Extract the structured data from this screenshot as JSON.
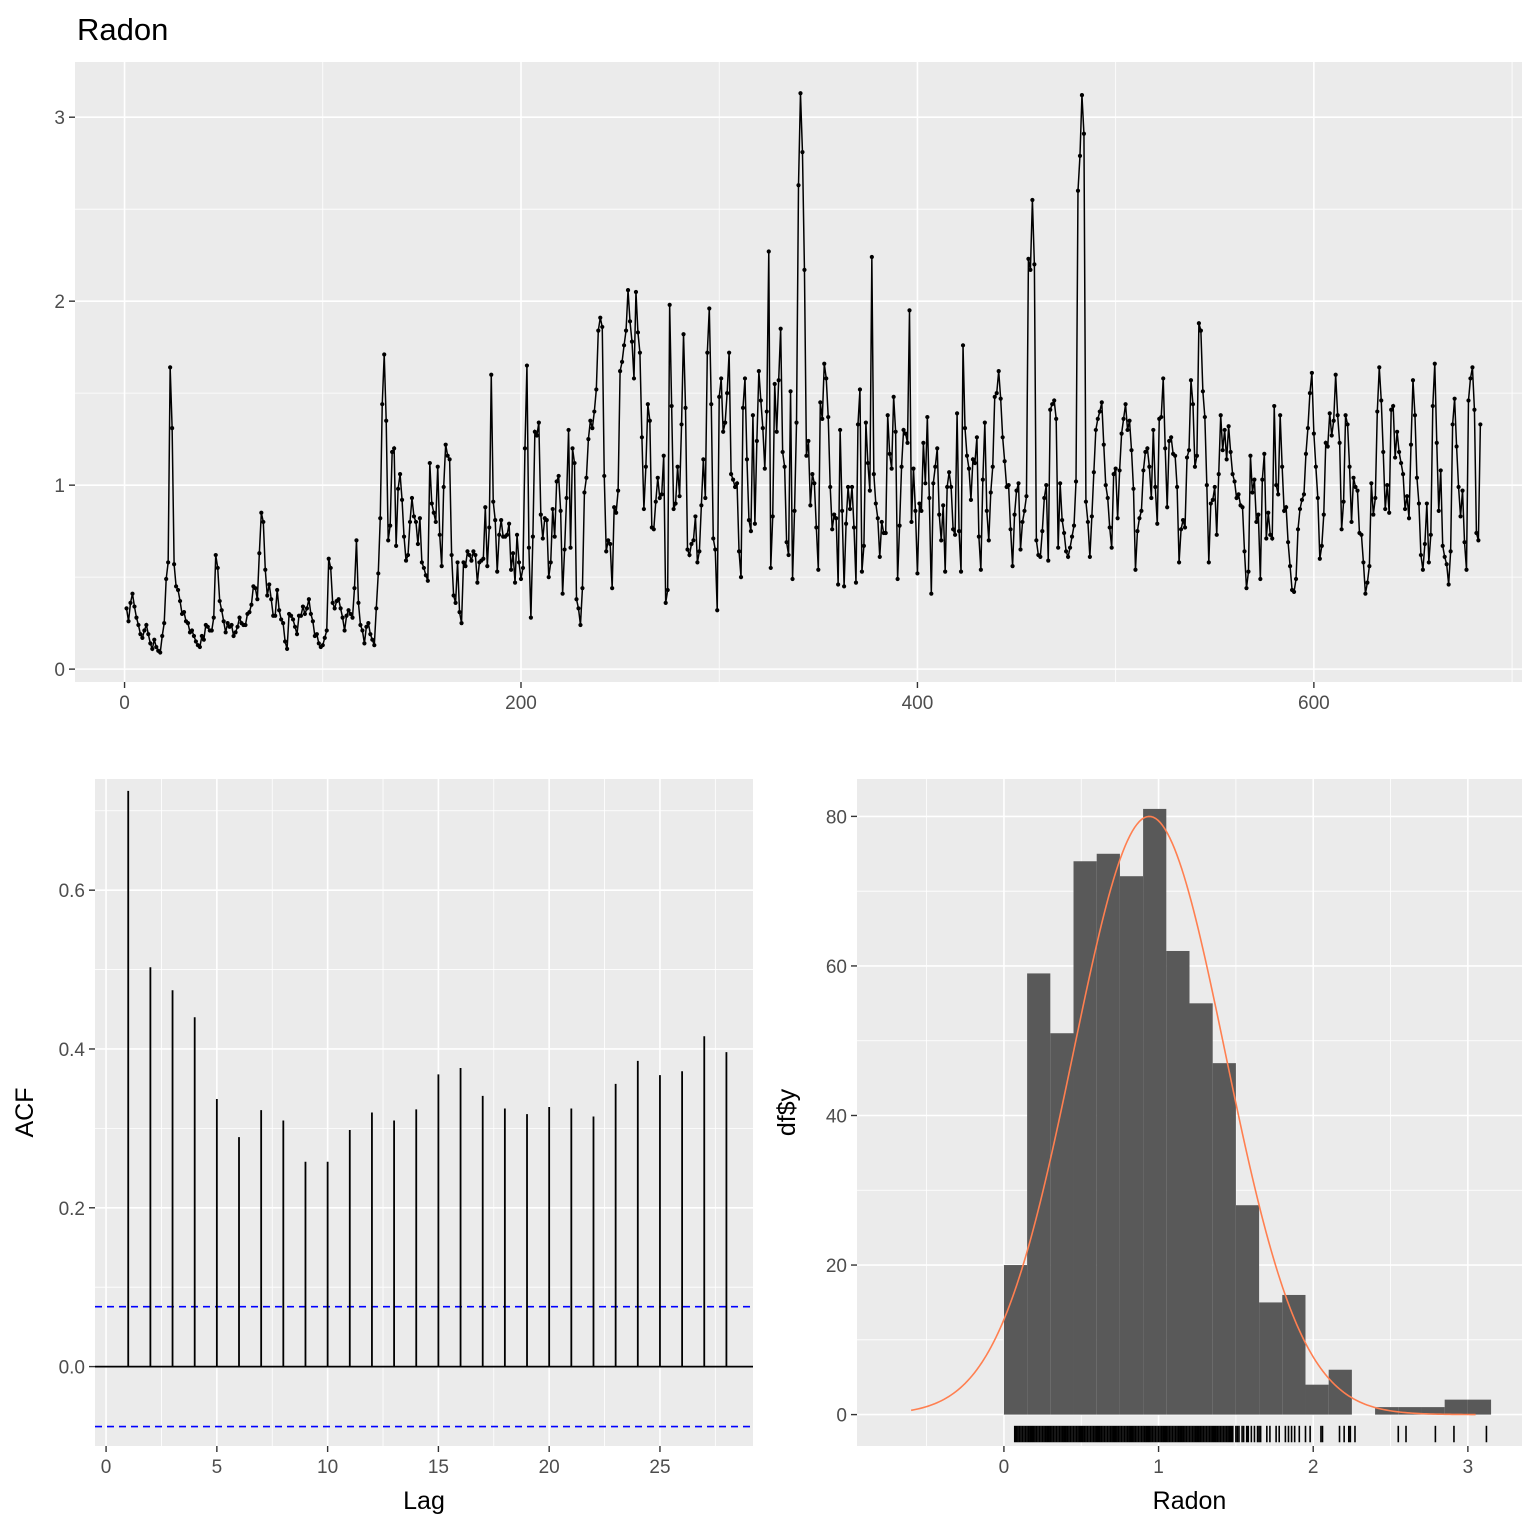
{
  "page_title": "Radon",
  "colors": {
    "panel": "#EBEBEB",
    "grid": "#FFFFFF",
    "series": "#000000",
    "acf_bound": "#0000FF",
    "bar_fill": "#595959",
    "normal_curve": "#FF7F50"
  },
  "chart_data": [
    {
      "type": "line",
      "title": "Radon",
      "xlabel": "",
      "ylabel": "",
      "xlim": [
        -25,
        705
      ],
      "ylim": [
        -0.07,
        3.3
      ],
      "x_ticks": [
        0,
        200,
        400,
        600
      ],
      "y_ticks": [
        0,
        1,
        2,
        3
      ],
      "x_tick_labels": [
        "0",
        "200",
        "400",
        "600"
      ],
      "y_tick_labels": [
        "0",
        "1",
        "2",
        "3"
      ],
      "grid": true,
      "markers": true,
      "series": [
        {
          "x_start": 1,
          "x_step": 1,
          "values": [
            0.33,
            0.26,
            0.36,
            0.41,
            0.34,
            0.28,
            0.24,
            0.19,
            0.17,
            0.21,
            0.24,
            0.19,
            0.14,
            0.11,
            0.16,
            0.12,
            0.1,
            0.09,
            0.18,
            0.25,
            0.49,
            0.58,
            1.64,
            1.31,
            0.57,
            0.45,
            0.43,
            0.37,
            0.3,
            0.31,
            0.26,
            0.25,
            0.2,
            0.21,
            0.18,
            0.15,
            0.13,
            0.12,
            0.18,
            0.16,
            0.24,
            0.23,
            0.21,
            0.21,
            0.28,
            0.62,
            0.55,
            0.37,
            0.32,
            0.26,
            0.2,
            0.25,
            0.23,
            0.24,
            0.18,
            0.2,
            0.23,
            0.28,
            0.25,
            0.24,
            0.24,
            0.3,
            0.31,
            0.35,
            0.45,
            0.44,
            0.38,
            0.63,
            0.85,
            0.8,
            0.54,
            0.4,
            0.46,
            0.38,
            0.29,
            0.29,
            0.43,
            0.32,
            0.27,
            0.25,
            0.15,
            0.11,
            0.3,
            0.29,
            0.27,
            0.23,
            0.19,
            0.29,
            0.29,
            0.34,
            0.3,
            0.33,
            0.38,
            0.3,
            0.26,
            0.18,
            0.19,
            0.14,
            0.12,
            0.13,
            0.17,
            0.21,
            0.6,
            0.55,
            0.36,
            0.33,
            0.37,
            0.38,
            0.33,
            0.28,
            0.21,
            0.29,
            0.32,
            0.3,
            0.28,
            0.44,
            0.7,
            0.36,
            0.24,
            0.21,
            0.14,
            0.23,
            0.25,
            0.19,
            0.16,
            0.13,
            0.33,
            0.52,
            0.82,
            1.44,
            1.71,
            1.35,
            0.7,
            0.78,
            1.18,
            1.2,
            0.67,
            0.98,
            1.06,
            0.92,
            0.72,
            0.59,
            0.62,
            0.8,
            0.93,
            0.83,
            0.8,
            0.68,
            0.82,
            0.58,
            0.55,
            0.51,
            0.48,
            1.12,
            0.9,
            0.85,
            0.8,
            1.1,
            0.73,
            0.56,
            0.99,
            1.22,
            1.16,
            1.14,
            0.62,
            0.4,
            0.36,
            0.58,
            0.31,
            0.25,
            0.58,
            0.56,
            0.64,
            0.62,
            0.59,
            0.64,
            0.62,
            0.47,
            0.58,
            0.59,
            0.6,
            0.88,
            0.56,
            0.77,
            1.6,
            0.91,
            0.81,
            0.53,
            0.73,
            0.81,
            0.72,
            0.72,
            0.73,
            0.79,
            0.54,
            0.63,
            0.47,
            0.73,
            0.58,
            0.49,
            0.55,
            1.2,
            1.65,
            0.66,
            0.28,
            0.72,
            1.29,
            1.27,
            1.34,
            0.84,
            0.71,
            0.82,
            0.81,
            0.5,
            0.58,
            0.87,
            0.72,
            1.02,
            1.05,
            0.86,
            0.41,
            0.65,
            0.93,
            1.3,
            0.66,
            1.2,
            1.12,
            0.38,
            0.33,
            0.24,
            0.44,
            0.96,
            1.04,
            1.25,
            1.35,
            1.31,
            1.4,
            1.52,
            1.84,
            1.91,
            1.86,
            1.05,
            0.64,
            0.7,
            0.68,
            0.44,
            0.88,
            0.85,
            0.97,
            1.62,
            1.67,
            1.76,
            1.84,
            2.06,
            1.89,
            1.78,
            1.58,
            2.05,
            1.83,
            1.72,
            1.26,
            0.87,
            1.1,
            1.44,
            1.35,
            0.77,
            0.76,
            0.91,
            1.04,
            0.93,
            0.95,
            1.16,
            0.36,
            0.43,
            1.98,
            1.43,
            0.87,
            0.9,
            1.1,
            0.94,
            1.33,
            1.82,
            1.42,
            0.65,
            0.62,
            0.68,
            0.7,
            0.83,
            0.58,
            0.64,
            0.89,
            1.14,
            0.93,
            1.72,
            1.96,
            1.44,
            0.71,
            0.65,
            0.32,
            1.48,
            1.58,
            1.29,
            1.34,
            1.5,
            1.72,
            1.06,
            1.03,
            0.99,
            1.01,
            0.64,
            0.5,
            1.42,
            1.58,
            1.14,
            0.81,
            0.75,
            1.38,
            0.79,
            1.24,
            1.62,
            1.46,
            1.31,
            1.09,
            1.4,
            2.27,
            0.55,
            0.83,
            1.55,
            1.29,
            1.57,
            1.85,
            1.18,
            1.1,
            0.69,
            0.62,
            1.51,
            0.49,
            0.86,
            1.34,
            2.63,
            3.13,
            2.81,
            2.17,
            1.16,
            1.24,
            0.89,
            1.06,
            1.01,
            0.77,
            0.54,
            1.45,
            1.36,
            1.66,
            1.58,
            1.37,
            0.99,
            0.76,
            0.84,
            0.82,
            0.46,
            1.3,
            0.86,
            0.45,
            0.79,
            0.99,
            0.87,
            0.99,
            0.77,
            0.47,
            1.33,
            1.52,
            0.53,
            0.67,
            1.34,
            1.12,
            0.97,
            2.24,
            1.06,
            0.9,
            0.82,
            0.61,
            0.8,
            0.74,
            0.74,
            1.38,
            1.17,
            1.09,
            1.48,
            1.29,
            0.49,
            0.78,
            1.1,
            1.3,
            1.28,
            1.23,
            1.95,
            0.8,
            1.09,
            0.86,
            0.52,
            0.9,
            0.86,
            1.23,
            1.01,
            1.37,
            0.93,
            0.41,
            1.01,
            1.1,
            1.2,
            0.84,
            0.7,
            0.89,
            0.53,
            0.99,
            1.07,
            0.99,
            0.76,
            0.73,
            1.39,
            0.75,
            0.53,
            1.76,
            1.31,
            1.16,
            1.09,
            0.92,
            1.14,
            1.12,
            1.26,
            0.72,
            0.54,
            1.03,
            1.34,
            0.86,
            0.7,
            0.96,
            1.1,
            1.48,
            1.5,
            1.62,
            1.47,
            1.26,
            1.13,
            0.99,
            1.0,
            0.76,
            0.56,
            0.84,
            0.97,
            1.01,
            0.65,
            0.8,
            0.86,
            0.94,
            2.23,
            2.17,
            2.55,
            2.2,
            0.7,
            0.62,
            0.61,
            0.75,
            0.93,
            1.0,
            0.59,
            1.41,
            1.44,
            1.46,
            1.36,
            0.66,
            1.01,
            0.81,
            0.74,
            0.64,
            0.61,
            0.66,
            0.72,
            0.78,
            1.02,
            2.6,
            2.79,
            3.12,
            2.91,
            0.91,
            0.8,
            0.61,
            0.83,
            1.07,
            1.3,
            1.36,
            1.4,
            1.45,
            1.22,
            1.0,
            0.93,
            0.77,
            0.66,
            1.06,
            1.09,
            0.82,
            1.08,
            1.28,
            1.36,
            1.44,
            1.3,
            1.35,
            1.19,
            0.98,
            0.54,
            0.75,
            0.82,
            0.86,
            1.08,
            1.18,
            1.2,
            1.1,
            0.93,
            1.3,
            0.99,
            0.79,
            1.36,
            1.37,
            1.58,
            1.2,
            0.88,
            1.24,
            1.26,
            1.17,
            1.16,
            0.99,
            0.58,
            0.76,
            0.81,
            0.77,
            1.15,
            1.19,
            1.57,
            1.44,
            1.1,
            1.16,
            1.88,
            1.84,
            1.51,
            1.37,
            1.0,
            0.58,
            0.9,
            0.92,
            0.99,
            0.73,
            1.06,
            1.38,
            1.19,
            1.3,
            1.14,
            1.32,
            1.18,
            1.06,
            1.02,
            0.93,
            0.95,
            0.89,
            0.88,
            0.64,
            0.44,
            0.53,
            1.16,
            0.96,
            1.03,
            0.8,
            0.84,
            0.49,
            1.03,
            1.17,
            0.71,
            0.85,
            0.73,
            0.71,
            1.43,
            1.0,
            0.95,
            1.38,
            1.1,
            0.86,
            0.88,
            0.69,
            0.56,
            0.43,
            0.42,
            0.49,
            0.76,
            0.87,
            0.92,
            0.95,
            1.17,
            1.31,
            1.5,
            1.61,
            1.28,
            1.1,
            0.93,
            0.6,
            0.67,
            0.84,
            1.23,
            1.21,
            1.39,
            1.27,
            1.35,
            1.6,
            1.38,
            1.23,
            0.76,
            0.91,
            1.38,
            1.33,
            1.1,
            0.8,
            1.04,
            0.99,
            0.97,
            0.74,
            0.73,
            0.58,
            0.41,
            0.47,
            0.56,
            1.01,
            0.84,
            0.93,
            1.4,
            1.64,
            1.46,
            1.18,
            0.87,
            1.0,
            0.85,
            1.41,
            1.43,
            1.15,
            1.29,
            1.18,
            1.12,
            1.06,
            0.87,
            0.94,
            0.82,
            1.22,
            1.57,
            1.38,
            1.04,
            0.9,
            0.62,
            0.54,
            0.68,
            0.9,
            0.58,
            0.73,
            1.43,
            1.66,
            1.23,
            0.86,
            1.08,
            0.67,
            0.61,
            0.57,
            0.46,
            0.64,
            1.33,
            1.47,
            1.21,
            0.99,
            0.83,
            0.97,
            0.69,
            0.54,
            1.46,
            1.58,
            1.64,
            1.41,
            0.74,
            0.7,
            1.33
          ]
        }
      ]
    },
    {
      "type": "bar",
      "subtype": "acf",
      "title": "",
      "xlabel": "Lag",
      "ylabel": "ACF",
      "xlim": [
        -0.5,
        29.2
      ],
      "ylim": [
        -0.1,
        0.74
      ],
      "x_ticks": [
        0,
        5,
        10,
        15,
        20,
        25
      ],
      "y_ticks": [
        0.0,
        0.2,
        0.4,
        0.6
      ],
      "x_tick_labels": [
        "0",
        "5",
        "10",
        "15",
        "20",
        "25"
      ],
      "y_tick_labels": [
        "0.0",
        "0.2",
        "0.4",
        "0.6"
      ],
      "grid": true,
      "lags": [
        1,
        2,
        3,
        4,
        5,
        6,
        7,
        8,
        9,
        10,
        11,
        12,
        13,
        14,
        15,
        16,
        17,
        18,
        19,
        20,
        21,
        22,
        23,
        24,
        25,
        26,
        27,
        28
      ],
      "values": [
        0.725,
        0.503,
        0.474,
        0.44,
        0.337,
        0.289,
        0.323,
        0.31,
        0.258,
        0.258,
        0.298,
        0.32,
        0.31,
        0.324,
        0.368,
        0.376,
        0.341,
        0.325,
        0.318,
        0.327,
        0.325,
        0.315,
        0.356,
        0.385,
        0.367,
        0.372,
        0.416,
        0.396
      ],
      "confidence_bounds": [
        -0.0755,
        0.0755
      ]
    },
    {
      "type": "bar",
      "subtype": "histogram",
      "title": "",
      "xlabel": "Radon",
      "ylabel": "df$y",
      "xlim": [
        -0.95,
        3.35
      ],
      "ylim": [
        -4.2,
        85
      ],
      "x_ticks": [
        0,
        1,
        2,
        3
      ],
      "y_ticks": [
        0,
        20,
        40,
        60,
        80
      ],
      "x_tick_labels": [
        "0",
        "1",
        "2",
        "3"
      ],
      "y_tick_labels": [
        "0",
        "20",
        "40",
        "60",
        "80"
      ],
      "grid": true,
      "bin_width": 0.15,
      "bin_start": 0.0,
      "counts": [
        20,
        59,
        51,
        74,
        75,
        72,
        81,
        62,
        55,
        47,
        28,
        15,
        16,
        4,
        6,
        0,
        1,
        1,
        1,
        2,
        2
      ],
      "normal_curve": {
        "mean": 0.94,
        "sd": 0.49,
        "peak": 80,
        "x_range": [
          -0.6,
          3.05
        ]
      },
      "rug": [
        0.07,
        0.08,
        0.09,
        0.1,
        0.11,
        0.12,
        0.13,
        0.14,
        0.15,
        0.16,
        0.17,
        0.18,
        0.19,
        0.2,
        0.21,
        0.22,
        0.23,
        0.24,
        0.25,
        0.26,
        0.27,
        0.28,
        0.29,
        0.3,
        0.31,
        0.32,
        0.33,
        0.34,
        0.35,
        0.36,
        0.37,
        0.38,
        0.39,
        0.4,
        0.41,
        0.42,
        0.43,
        0.44,
        0.45,
        0.46,
        0.47,
        0.48,
        0.49,
        0.5,
        0.51,
        0.52,
        0.53,
        0.54,
        0.55,
        0.56,
        0.57,
        0.58,
        0.59,
        0.6,
        0.61,
        0.62,
        0.63,
        0.64,
        0.65,
        0.66,
        0.67,
        0.68,
        0.69,
        0.7,
        0.71,
        0.72,
        0.73,
        0.74,
        0.75,
        0.76,
        0.77,
        0.78,
        0.79,
        0.8,
        0.81,
        0.82,
        0.83,
        0.84,
        0.85,
        0.86,
        0.87,
        0.88,
        0.89,
        0.9,
        0.91,
        0.92,
        0.93,
        0.94,
        0.95,
        0.96,
        0.97,
        0.98,
        0.99,
        1.0,
        1.01,
        1.02,
        1.03,
        1.04,
        1.05,
        1.06,
        1.07,
        1.08,
        1.09,
        1.1,
        1.11,
        1.12,
        1.13,
        1.14,
        1.15,
        1.16,
        1.17,
        1.18,
        1.19,
        1.2,
        1.21,
        1.22,
        1.23,
        1.24,
        1.25,
        1.26,
        1.27,
        1.28,
        1.29,
        1.3,
        1.31,
        1.32,
        1.33,
        1.34,
        1.35,
        1.36,
        1.37,
        1.38,
        1.39,
        1.4,
        1.41,
        1.42,
        1.43,
        1.44,
        1.45,
        1.46,
        1.47,
        1.48,
        1.5,
        1.51,
        1.52,
        1.54,
        1.55,
        1.57,
        1.58,
        1.6,
        1.62,
        1.64,
        1.65,
        1.66,
        1.7,
        1.72,
        1.76,
        1.78,
        1.82,
        1.84,
        1.86,
        1.88,
        1.91,
        1.95,
        1.98,
        2.05,
        2.06,
        2.17,
        2.2,
        2.23,
        2.24,
        2.27,
        2.55,
        2.6,
        2.79,
        2.91,
        3.12
      ]
    }
  ]
}
